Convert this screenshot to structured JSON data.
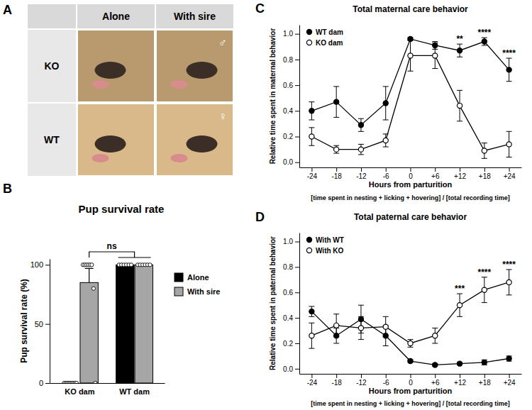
{
  "photo_grid": {
    "panel_label": "A",
    "columns": [
      "Alone",
      "With sire"
    ],
    "rows": [
      "KO",
      "WT"
    ],
    "sire_symbols": [
      "♂",
      "♀"
    ]
  },
  "chart_data": [
    {
      "panel_label": "B",
      "type": "bar",
      "title": "Pup survival rate",
      "y_label": "Pup survival rate (%)",
      "categories": [
        "KO dam",
        "WT dam"
      ],
      "ylim": [
        0,
        105
      ],
      "yticks": [
        0,
        50,
        100
      ],
      "legend": "right",
      "series": [
        {
          "name": "Alone",
          "color": "#000000",
          "values": [
            0,
            100
          ],
          "errors": [
            0,
            0
          ],
          "points": [
            [
              0,
              0,
              0,
              0,
              0,
              0,
              0,
              0,
              0
            ],
            [
              100,
              100,
              100,
              100,
              100,
              100
            ]
          ]
        },
        {
          "name": "With sire",
          "color": "#a6a6a6",
          "values": [
            85,
            100
          ],
          "errors": [
            12,
            0
          ],
          "points": [
            [
              100,
              100,
              100,
              100,
              100,
              100,
              80,
              0
            ],
            [
              100,
              100,
              100,
              100,
              100,
              100
            ]
          ]
        }
      ],
      "annotations": [
        {
          "text": "ns"
        }
      ]
    },
    {
      "panel_label": "C",
      "type": "line",
      "title": "Total maternal care behavior",
      "x_label": "Hours from parturition",
      "y_label": "Relative time spent in maternal behavior",
      "footnote": "[time spent in nesting + licking + hovering] / [total recording time]",
      "x": [
        -24,
        -18,
        -12,
        -6,
        0,
        6,
        12,
        18,
        24
      ],
      "xlim": [
        -27,
        27
      ],
      "xticks": [
        -24,
        -18,
        -12,
        -6,
        0,
        {
          "value": 6,
          "label": "+6"
        },
        {
          "value": 12,
          "label": "+12"
        },
        {
          "value": 18,
          "label": "+18"
        },
        {
          "value": 24,
          "label": "+24"
        }
      ],
      "ylim": [
        -0.04,
        1.07
      ],
      "yticks": [
        {
          "value": 0,
          "label": "0.0"
        },
        {
          "value": 0.2,
          "label": "0.2"
        },
        {
          "value": 0.4,
          "label": "0.4"
        },
        {
          "value": 0.6,
          "label": "0.6"
        },
        {
          "value": 0.8,
          "label": "0.8"
        },
        {
          "value": 1,
          "label": "1.0"
        }
      ],
      "legend": "upper left",
      "series": [
        {
          "name": "WT dam",
          "color": "#000000",
          "marker": "filled-circle",
          "values": [
            0.4,
            0.47,
            0.29,
            0.46,
            0.96,
            0.91,
            0.87,
            0.94,
            0.72
          ],
          "errors": [
            0.07,
            0.12,
            0.05,
            0.13,
            0.01,
            0.03,
            0.05,
            0.03,
            0.09
          ]
        },
        {
          "name": "KO dam",
          "color": "#000000",
          "marker": "open-circle",
          "values": [
            0.2,
            0.1,
            0.1,
            0.17,
            0.83,
            0.83,
            0.44,
            0.09,
            0.14
          ],
          "errors": [
            0.07,
            0.03,
            0.04,
            0.05,
            0.12,
            0.1,
            0.12,
            0.06,
            0.1
          ]
        }
      ],
      "annotations": [
        {
          "x": 12,
          "text": "**"
        },
        {
          "x": 18,
          "text": "****"
        },
        {
          "x": 24,
          "text": "****"
        }
      ]
    },
    {
      "panel_label": "D",
      "type": "line",
      "title": "Total paternal care behavior",
      "x_label": "Hours from parturition",
      "y_label": "Relative time spent in paternal behavior",
      "footnote": "[time spent in nesting + licking + hovering] / [total recording time]",
      "x": [
        -24,
        -18,
        -12,
        -6,
        0,
        6,
        12,
        18,
        24
      ],
      "xlim": [
        -27,
        27
      ],
      "xticks": [
        -24,
        -18,
        -12,
        -6,
        0,
        {
          "value": 6,
          "label": "+6"
        },
        {
          "value": 12,
          "label": "+12"
        },
        {
          "value": 18,
          "label": "+18"
        },
        {
          "value": 24,
          "label": "+24"
        }
      ],
      "ylim": [
        -0.04,
        1.07
      ],
      "yticks": [
        {
          "value": 0,
          "label": "0.0"
        },
        {
          "value": 0.2,
          "label": "0.2"
        },
        {
          "value": 0.4,
          "label": "0.4"
        },
        {
          "value": 0.6,
          "label": "0.6"
        },
        {
          "value": 0.8,
          "label": "0.8"
        },
        {
          "value": 1,
          "label": "1.0"
        }
      ],
      "legend": "upper left",
      "series": [
        {
          "name": "With WT",
          "color": "#000000",
          "marker": "filled-circle",
          "values": [
            0.45,
            0.26,
            0.39,
            0.26,
            0.06,
            0.03,
            0.04,
            0.05,
            0.08
          ],
          "errors": [
            0.04,
            0.06,
            0.11,
            0.08,
            0.01,
            0.01,
            0.01,
            0.02,
            0.02
          ]
        },
        {
          "name": "With KO",
          "color": "#000000",
          "marker": "open-circle",
          "values": [
            0.26,
            0.34,
            0.32,
            0.33,
            0.2,
            0.26,
            0.5,
            0.62,
            0.68
          ],
          "errors": [
            0.1,
            0.09,
            0.09,
            0.08,
            0.03,
            0.06,
            0.09,
            0.1,
            0.1
          ]
        }
      ],
      "annotations": [
        {
          "x": 12,
          "text": "***"
        },
        {
          "x": 18,
          "text": "****"
        },
        {
          "x": 24,
          "text": "****"
        }
      ]
    }
  ]
}
